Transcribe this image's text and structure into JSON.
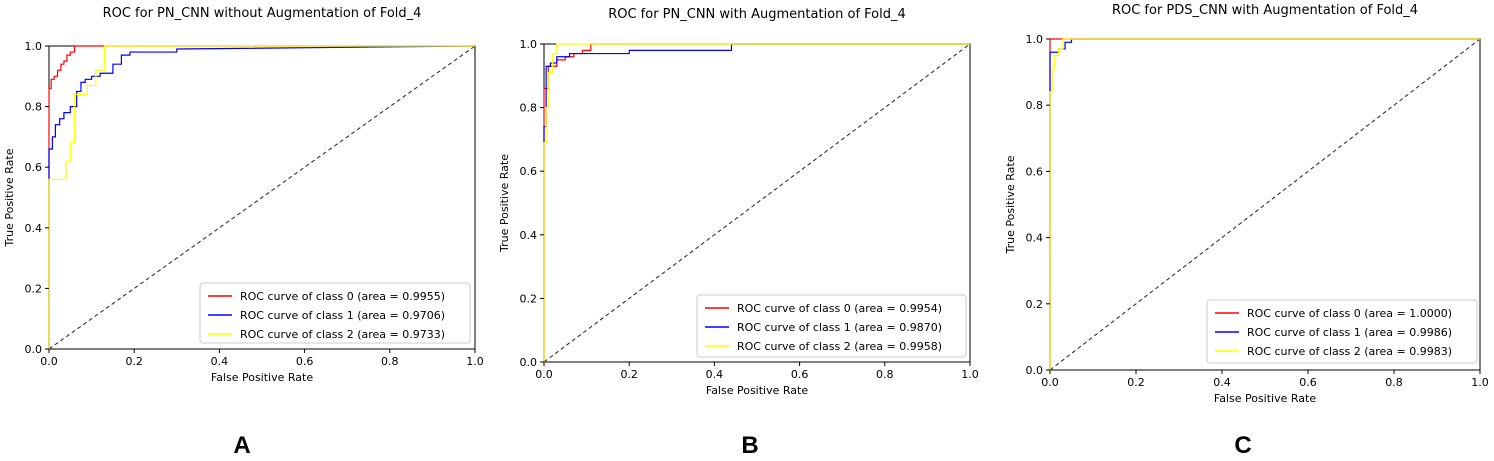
{
  "figure": {
    "panel_letters": [
      "A",
      "B",
      "C"
    ]
  },
  "chart_data": [
    {
      "type": "line",
      "title": "ROC for PN_CNN without Augmentation of Fold_4",
      "xlabel": "False Positive Rate",
      "ylabel": "True Positive Rate",
      "xlim": [
        0.0,
        1.0
      ],
      "ylim": [
        0.0,
        1.0
      ],
      "xticks": [
        "0.0",
        "0.2",
        "0.4",
        "0.6",
        "0.8",
        "1.0"
      ],
      "yticks": [
        "0.0",
        "0.2",
        "0.4",
        "0.6",
        "0.8",
        "1.0"
      ],
      "grid": false,
      "legend_position": "lower-right",
      "diagonal": {
        "style": "dashed",
        "color": "#333333",
        "x": [
          0,
          1
        ],
        "y": [
          0,
          1
        ]
      },
      "series": [
        {
          "name": "ROC curve of class 0 (area = 0.9955)",
          "color": "#ff0000",
          "x": [
            0,
            0,
            0.005,
            0.005,
            0.012,
            0.012,
            0.02,
            0.02,
            0.028,
            0.028,
            0.035,
            0.035,
            0.042,
            0.042,
            0.05,
            0.05,
            0.06,
            0.06,
            0.14,
            1.0
          ],
          "y": [
            0,
            0.86,
            0.86,
            0.89,
            0.89,
            0.9,
            0.9,
            0.92,
            0.92,
            0.94,
            0.94,
            0.95,
            0.95,
            0.97,
            0.97,
            0.98,
            0.98,
            1.0,
            1.0,
            1.0
          ]
        },
        {
          "name": "ROC curve of class 1 (area = 0.9706)",
          "color": "#0000ff",
          "x": [
            0,
            0,
            0.008,
            0.008,
            0.015,
            0.015,
            0.025,
            0.025,
            0.035,
            0.035,
            0.05,
            0.05,
            0.065,
            0.065,
            0.075,
            0.075,
            0.085,
            0.085,
            0.1,
            0.1,
            0.12,
            0.12,
            0.15,
            0.15,
            0.17,
            0.17,
            0.19,
            0.19,
            0.3,
            0.3,
            1.0
          ],
          "y": [
            0,
            0.66,
            0.66,
            0.7,
            0.7,
            0.74,
            0.74,
            0.76,
            0.76,
            0.78,
            0.78,
            0.8,
            0.8,
            0.85,
            0.85,
            0.88,
            0.88,
            0.89,
            0.89,
            0.9,
            0.9,
            0.91,
            0.91,
            0.94,
            0.94,
            0.97,
            0.97,
            0.98,
            0.98,
            0.99,
            1.0
          ]
        },
        {
          "name": "ROC curve of class 2 (area = 0.9733)",
          "color": "#ffff00",
          "x": [
            0,
            0,
            0.04,
            0.04,
            0.05,
            0.05,
            0.06,
            0.06,
            0.09,
            0.09,
            0.11,
            0.11,
            0.13,
            0.13,
            1.0
          ],
          "y": [
            0,
            0.56,
            0.56,
            0.62,
            0.62,
            0.68,
            0.68,
            0.84,
            0.84,
            0.87,
            0.87,
            0.92,
            0.92,
            1.0,
            1.0
          ]
        }
      ]
    },
    {
      "type": "line",
      "title": "ROC for PN_CNN with Augmentation of Fold_4",
      "xlabel": "False Positive Rate",
      "ylabel": "True Positive Rate",
      "xlim": [
        0.0,
        1.0
      ],
      "ylim": [
        0.0,
        1.0
      ],
      "xticks": [
        "0.0",
        "0.2",
        "0.4",
        "0.6",
        "0.8",
        "1.0"
      ],
      "yticks": [
        "0.0",
        "0.2",
        "0.4",
        "0.6",
        "0.8",
        "1.0"
      ],
      "grid": false,
      "legend_position": "lower-right",
      "diagonal": {
        "style": "dashed",
        "color": "#333333",
        "x": [
          0,
          1
        ],
        "y": [
          0,
          1
        ]
      },
      "series": [
        {
          "name": "ROC curve of class 0 (area = 0.9954)",
          "color": "#ff0000",
          "x": [
            0,
            0,
            0.01,
            0.01,
            0.03,
            0.03,
            0.05,
            0.05,
            0.07,
            0.07,
            0.09,
            0.09,
            0.11,
            0.11,
            1.0
          ],
          "y": [
            0,
            0.86,
            0.86,
            0.93,
            0.93,
            0.95,
            0.95,
            0.96,
            0.96,
            0.97,
            0.97,
            0.98,
            0.98,
            1.0,
            1.0
          ]
        },
        {
          "name": "ROC curve of class 1 (area = 0.9870)",
          "color": "#0000ff",
          "x": [
            0,
            0,
            0.005,
            0.005,
            0.015,
            0.015,
            0.03,
            0.03,
            0.06,
            0.06,
            0.2,
            0.2,
            0.44,
            0.44,
            1.0
          ],
          "y": [
            0,
            0.74,
            0.74,
            0.93,
            0.93,
            0.94,
            0.94,
            0.96,
            0.96,
            0.97,
            0.97,
            0.98,
            0.98,
            1.0,
            1.0
          ]
        },
        {
          "name": "ROC curve of class 2 (area = 0.9958)",
          "color": "#ffff00",
          "x": [
            0,
            0,
            0.005,
            0.005,
            0.01,
            0.01,
            0.02,
            0.02,
            0.03,
            0.03,
            1.0
          ],
          "y": [
            0,
            0.69,
            0.69,
            0.8,
            0.8,
            0.91,
            0.91,
            0.97,
            0.97,
            1.0,
            1.0
          ]
        }
      ]
    },
    {
      "type": "line",
      "title": "ROC for PDS_CNN with Augmentation of Fold_4",
      "xlabel": "False Positive Rate",
      "ylabel": "True Positive Rate",
      "xlim": [
        0.0,
        1.0
      ],
      "ylim": [
        0.0,
        1.0
      ],
      "xticks": [
        "0.0",
        "0.2",
        "0.4",
        "0.6",
        "0.8",
        "1.0"
      ],
      "yticks": [
        "0.0",
        "0.2",
        "0.4",
        "0.6",
        "0.8",
        "1.0"
      ],
      "grid": false,
      "legend_position": "lower-right",
      "diagonal": {
        "style": "dashed",
        "color": "#333333",
        "x": [
          0,
          1
        ],
        "y": [
          0,
          1
        ]
      },
      "series": [
        {
          "name": "ROC curve of class 0 (area = 1.0000)",
          "color": "#ff0000",
          "x": [
            0,
            0,
            1.0
          ],
          "y": [
            0,
            1.0,
            1.0
          ]
        },
        {
          "name": "ROC curve of class 1 (area = 0.9986)",
          "color": "#0000ff",
          "x": [
            0,
            0,
            0.02,
            0.02,
            0.035,
            0.035,
            0.05,
            0.05,
            1.0
          ],
          "y": [
            0,
            0.96,
            0.96,
            0.97,
            0.97,
            0.99,
            0.99,
            1.0,
            1.0
          ]
        },
        {
          "name": "ROC curve of class 2 (area = 0.9983)",
          "color": "#ffff00",
          "x": [
            0,
            0,
            0.005,
            0.005,
            0.01,
            0.01,
            0.02,
            0.02,
            0.03,
            0.03,
            1.0
          ],
          "y": [
            0,
            0.84,
            0.84,
            0.91,
            0.91,
            0.95,
            0.95,
            0.97,
            0.97,
            1.0,
            1.0
          ]
        }
      ]
    }
  ]
}
